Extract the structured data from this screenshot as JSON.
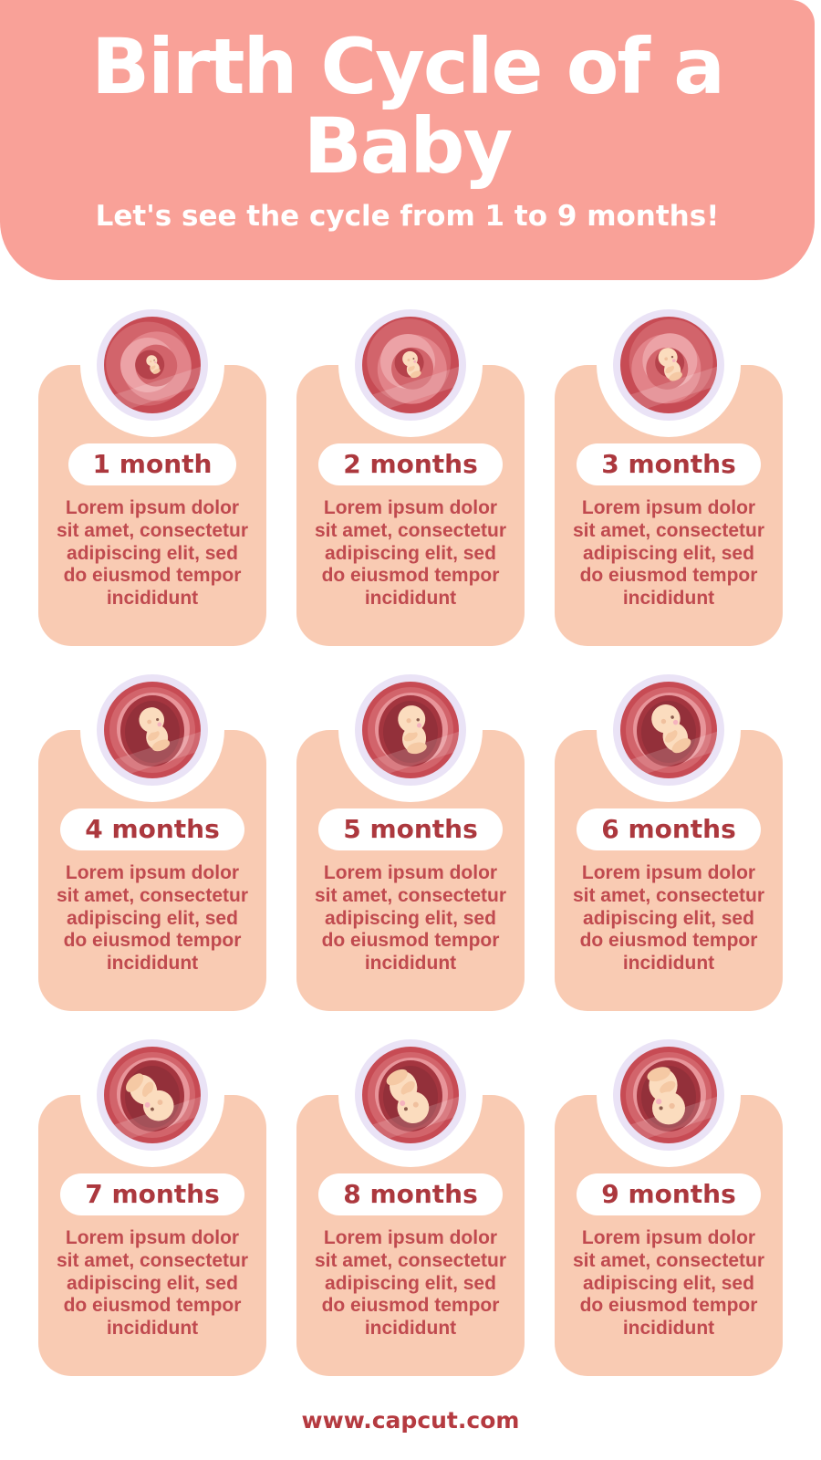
{
  "header": {
    "title": "Birth Cycle of a Baby",
    "subtitle": "Let's see the cycle from 1 to 9 months!",
    "background_color": "#F9A198",
    "text_color": "#FFFFFF"
  },
  "cards": [
    {
      "stage": 1,
      "month_label": "1 month",
      "icon": "womb-fetus-1-month-icon",
      "description": "Lorem ipsum dolor sit amet, consectetur adipiscing elit, sed do eiusmod tempor incididunt"
    },
    {
      "stage": 2,
      "month_label": "2 months",
      "icon": "womb-fetus-2-months-icon",
      "description": "Lorem ipsum dolor sit amet, consectetur adipiscing elit, sed do eiusmod tempor incididunt"
    },
    {
      "stage": 3,
      "month_label": "3 months",
      "icon": "womb-fetus-3-months-icon",
      "description": "Lorem ipsum dolor sit amet, consectetur adipiscing elit, sed do eiusmod tempor incididunt"
    },
    {
      "stage": 4,
      "month_label": "4 months",
      "icon": "womb-fetus-4-months-icon",
      "description": "Lorem ipsum dolor sit amet, consectetur adipiscing elit, sed do eiusmod tempor incididunt"
    },
    {
      "stage": 5,
      "month_label": "5 months",
      "icon": "womb-fetus-5-months-icon",
      "description": "Lorem ipsum dolor sit amet, consectetur adipiscing elit, sed do eiusmod tempor incididunt"
    },
    {
      "stage": 6,
      "month_label": "6 months",
      "icon": "womb-fetus-6-months-icon",
      "description": "Lorem ipsum dolor sit amet, consectetur adipiscing elit, sed do eiusmod tempor incididunt"
    },
    {
      "stage": 7,
      "month_label": "7 months",
      "icon": "womb-fetus-7-months-icon",
      "description": "Lorem ipsum dolor sit amet, consectetur adipiscing elit, sed do eiusmod tempor incididunt"
    },
    {
      "stage": 8,
      "month_label": "8 months",
      "icon": "womb-fetus-8-months-icon",
      "description": "Lorem ipsum dolor sit amet, consectetur adipiscing elit, sed do eiusmod tempor incididunt"
    },
    {
      "stage": 9,
      "month_label": "9 months",
      "icon": "womb-fetus-9-months-icon",
      "description": "Lorem ipsum dolor sit amet, consectetur adipiscing elit, sed do eiusmod tempor incididunt"
    }
  ],
  "footer": {
    "website": "www.capcut.com"
  },
  "colors": {
    "header_pink": "#F9A198",
    "card_peach": "#F9CBB3",
    "pill_text_red": "#AC383E",
    "body_text_red": "#C04A4F",
    "footer_text_red": "#B53A40",
    "womb_ring_lavender": "#EAE3F6",
    "womb_red": "#C74B54",
    "fetus_skin": "#FBDCBE"
  }
}
